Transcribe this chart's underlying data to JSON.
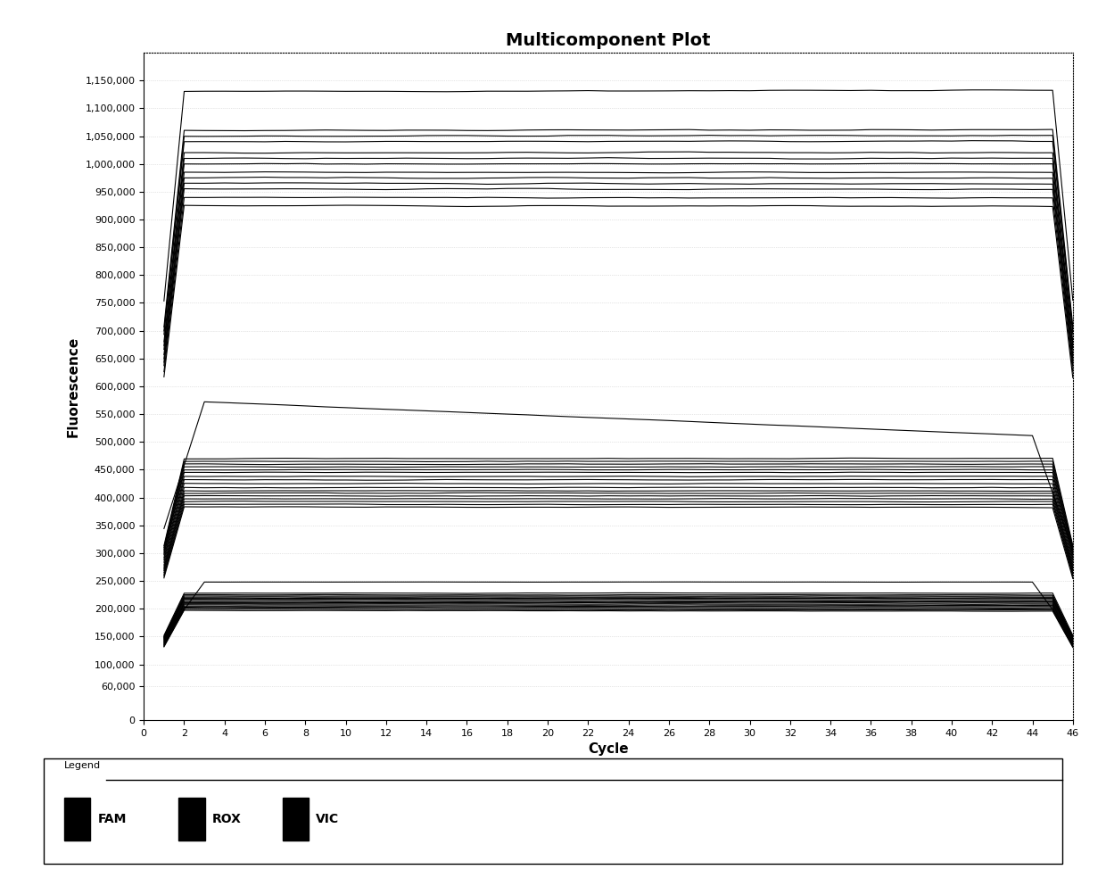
{
  "title": "Multicomponent Plot",
  "xlabel": "Cycle",
  "ylabel": "Fluorescence",
  "ylim": [
    0,
    1200000
  ],
  "xlim": [
    0,
    46
  ],
  "yticks": [
    0,
    60000,
    100000,
    150000,
    200000,
    250000,
    300000,
    350000,
    400000,
    450000,
    500000,
    550000,
    600000,
    650000,
    700000,
    750000,
    800000,
    850000,
    900000,
    950000,
    1000000,
    1050000,
    1100000,
    1150000
  ],
  "ytick_labels": [
    "0",
    "60,000",
    "100,000",
    "150,000",
    "200,000",
    "250,000",
    "300,000",
    "350,000",
    "400,000",
    "450,000",
    "500,000",
    "550,000",
    "600,000",
    "650,000",
    "700,000",
    "750,000",
    "800,000",
    "850,000",
    "900,000",
    "950,000",
    "1,000,000",
    "1,050,000",
    "1,100,000",
    "1,150,000"
  ],
  "xticks": [
    0,
    2,
    4,
    6,
    8,
    10,
    12,
    14,
    16,
    18,
    20,
    22,
    24,
    26,
    28,
    30,
    32,
    34,
    36,
    38,
    40,
    42,
    44,
    46
  ],
  "background_color": "#ffffff",
  "plot_bg_color": "#ffffff",
  "grid_color": "#cccccc",
  "line_color": "#000000",
  "legend_labels": [
    "FAM",
    "ROX",
    "VIC"
  ],
  "high_lines": [
    [
      1130000,
      3000
    ],
    [
      1060000,
      1500
    ],
    [
      1050000,
      1200
    ],
    [
      1040000,
      800
    ],
    [
      1020000,
      400
    ],
    [
      1010000,
      200
    ],
    [
      1000000,
      -100
    ],
    [
      985000,
      -300
    ],
    [
      975000,
      -400
    ],
    [
      965000,
      -600
    ],
    [
      955000,
      -800
    ],
    [
      940000,
      -1000
    ],
    [
      925000,
      -1200
    ]
  ],
  "mid_high_line": [
    575000,
    -65000
  ],
  "mid_lines": [
    [
      470000,
      500
    ],
    [
      465000,
      300
    ],
    [
      460000,
      200
    ],
    [
      455000,
      100
    ],
    [
      450000,
      50
    ],
    [
      445000,
      0
    ],
    [
      438000,
      -50
    ],
    [
      432000,
      -100
    ],
    [
      425000,
      -150
    ],
    [
      418000,
      -200
    ],
    [
      412000,
      -250
    ],
    [
      408000,
      -300
    ],
    [
      403000,
      -350
    ],
    [
      398000,
      -400
    ],
    [
      393000,
      -500
    ],
    [
      388000,
      -600
    ],
    [
      383000,
      -700
    ]
  ],
  "low_high_line": [
    248000,
    0
  ],
  "low_lines": [
    [
      228000,
      0
    ],
    [
      225000,
      -100
    ],
    [
      223000,
      -200
    ],
    [
      221000,
      -300
    ],
    [
      219000,
      -400
    ],
    [
      217000,
      -500
    ],
    [
      215000,
      -600
    ],
    [
      213000,
      -700
    ],
    [
      211000,
      -800
    ],
    [
      209000,
      -900
    ],
    [
      207000,
      -1000
    ],
    [
      205000,
      -1100
    ],
    [
      203000,
      -1200
    ],
    [
      201000,
      -1300
    ],
    [
      199000,
      -1400
    ],
    [
      197000,
      -1500
    ]
  ]
}
